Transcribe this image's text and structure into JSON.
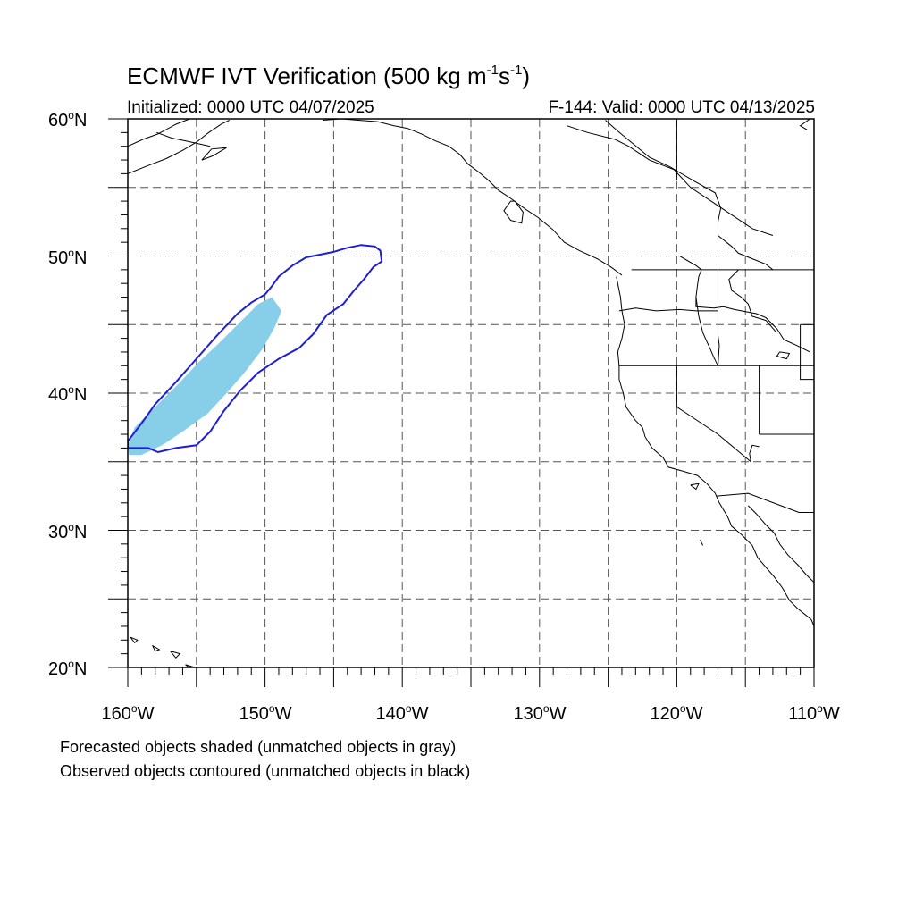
{
  "title": {
    "main": "ECMWF IVT Verification (500 kg m",
    "sup1": "-1",
    "mid": "s",
    "sup2": "-1",
    "end": ")"
  },
  "subtitle_left": "Initialized: 0000 UTC 04/07/2025",
  "subtitle_right": "F-144: Valid: 0000 UTC 04/13/2025",
  "map": {
    "lon_range": [
      -160,
      -110
    ],
    "lat_range": [
      20,
      60
    ],
    "grid": true,
    "grid_lon_step": 5,
    "grid_lat_step": 5,
    "lat_ticks": [
      {
        "deg": "60",
        "suffix": "N"
      },
      {
        "deg": "50",
        "suffix": "N"
      },
      {
        "deg": "40",
        "suffix": "N"
      },
      {
        "deg": "30",
        "suffix": "N"
      },
      {
        "deg": "20",
        "suffix": "N"
      }
    ],
    "lon_ticks": [
      {
        "deg": "160",
        "suffix": "W"
      },
      {
        "deg": "150",
        "suffix": "W"
      },
      {
        "deg": "140",
        "suffix": "W"
      },
      {
        "deg": "130",
        "suffix": "W"
      },
      {
        "deg": "120",
        "suffix": "W"
      },
      {
        "deg": "110",
        "suffix": "W"
      }
    ],
    "forecast_object": {
      "color": "#87CEE8",
      "outline": [
        [
          -159.9,
          35.5
        ],
        [
          -159.0,
          35.5
        ],
        [
          -157.5,
          36.2
        ],
        [
          -156.0,
          37.2
        ],
        [
          -154.2,
          38.5
        ],
        [
          -152.8,
          40.0
        ],
        [
          -151.5,
          41.5
        ],
        [
          -150.2,
          43.2
        ],
        [
          -149.3,
          44.8
        ],
        [
          -148.8,
          46.0
        ],
        [
          -149.5,
          47.0
        ],
        [
          -150.5,
          46.5
        ],
        [
          -152.0,
          45.0
        ],
        [
          -153.5,
          43.5
        ],
        [
          -154.8,
          42.3
        ],
        [
          -156.2,
          40.8
        ],
        [
          -157.8,
          39.2
        ],
        [
          -159.5,
          37.5
        ],
        [
          -160.0,
          36.2
        ]
      ]
    },
    "observed_object": {
      "color": "#1E1ED2",
      "outline": [
        [
          -160.0,
          36.0
        ],
        [
          -158.5,
          36.0
        ],
        [
          -157.8,
          35.7
        ],
        [
          -156.5,
          36.0
        ],
        [
          -155.0,
          36.2
        ],
        [
          -154.0,
          37.2
        ],
        [
          -153.0,
          38.7
        ],
        [
          -151.8,
          40.2
        ],
        [
          -150.5,
          41.5
        ],
        [
          -149.0,
          42.5
        ],
        [
          -147.5,
          43.3
        ],
        [
          -146.5,
          44.3
        ],
        [
          -145.5,
          45.7
        ],
        [
          -144.3,
          46.5
        ],
        [
          -143.5,
          47.5
        ],
        [
          -142.8,
          48.3
        ],
        [
          -142.1,
          49.2
        ],
        [
          -141.5,
          49.6
        ],
        [
          -141.6,
          50.4
        ],
        [
          -142.0,
          50.7
        ],
        [
          -143.0,
          50.8
        ],
        [
          -144.0,
          50.6
        ],
        [
          -145.0,
          50.3
        ],
        [
          -146.0,
          50.1
        ],
        [
          -147.0,
          49.9
        ],
        [
          -148.0,
          49.3
        ],
        [
          -149.0,
          48.5
        ],
        [
          -149.5,
          47.8
        ],
        [
          -150.0,
          47.2
        ],
        [
          -151.0,
          46.6
        ],
        [
          -152.0,
          45.8
        ],
        [
          -153.5,
          44.2
        ],
        [
          -155.0,
          42.5
        ],
        [
          -156.5,
          40.8
        ],
        [
          -158.0,
          39.2
        ],
        [
          -159.0,
          37.8
        ],
        [
          -160.0,
          36.5
        ]
      ]
    },
    "coastlines": [
      [
        [
          -128.0,
          59.5
        ],
        [
          -126.5,
          59.0
        ],
        [
          -124.5,
          58.5
        ],
        [
          -123.5,
          58.0
        ],
        [
          -122.0,
          57.0
        ],
        [
          -120.2,
          56.3
        ],
        [
          -119.0,
          55.0
        ],
        [
          -117.5,
          54.0
        ],
        [
          -116.0,
          53.0
        ],
        [
          -114.5,
          52.0
        ],
        [
          -113.0,
          51.5
        ]
      ],
      [
        [
          -125.2,
          59.9
        ],
        [
          -124.3,
          59.1
        ],
        [
          -123.2,
          58.2
        ],
        [
          -122.0,
          57.2
        ],
        [
          -120.5,
          56.5
        ],
        [
          -118.8,
          55.5
        ],
        [
          -117.2,
          54.6
        ],
        [
          -116.8,
          53.5
        ],
        [
          -117.0,
          52.5
        ],
        [
          -117.0,
          51.5
        ],
        [
          -116.0,
          50.7
        ],
        [
          -115.5,
          50.2
        ],
        [
          -114.5,
          49.8
        ],
        [
          -113.5,
          49.4
        ],
        [
          -113.0,
          49.0
        ]
      ],
      [
        [
          -119.8,
          50.0
        ],
        [
          -118.6,
          49.3
        ],
        [
          -118.2,
          49.0
        ],
        [
          -118.4,
          48.5
        ],
        [
          -118.5,
          47.8
        ],
        [
          -118.6,
          47.0
        ],
        [
          -118.6,
          46.3
        ],
        [
          -117.3,
          46.2
        ],
        [
          -116.6,
          46.3
        ],
        [
          -115.8,
          46.1
        ],
        [
          -114.2,
          45.8
        ],
        [
          -113.5,
          45.5
        ],
        [
          -112.7,
          44.7
        ],
        [
          -112.2,
          43.9
        ],
        [
          -111.3,
          43.5
        ],
        [
          -110.3,
          43.0
        ]
      ],
      [
        [
          -118.6,
          47.0
        ],
        [
          -118.4,
          45.6
        ],
        [
          -118.1,
          44.4
        ],
        [
          -117.6,
          43.3
        ],
        [
          -117.3,
          42.6
        ],
        [
          -117.0,
          42.0
        ]
      ],
      [
        [
          -124.4,
          48.5
        ],
        [
          -124.1,
          47.0
        ],
        [
          -124.0,
          46.0
        ],
        [
          -123.8,
          45.0
        ],
        [
          -124.0,
          44.0
        ],
        [
          -124.3,
          43.0
        ],
        [
          -124.2,
          42.0
        ],
        [
          -124.2,
          41.0
        ],
        [
          -123.9,
          40.0
        ],
        [
          -123.7,
          39.0
        ],
        [
          -123.0,
          38.0
        ],
        [
          -122.5,
          37.5
        ],
        [
          -122.3,
          36.8
        ],
        [
          -121.8,
          36.0
        ],
        [
          -121.0,
          35.3
        ],
        [
          -120.6,
          34.6
        ],
        [
          -119.5,
          34.3
        ],
        [
          -118.5,
          34.0
        ],
        [
          -117.8,
          33.4
        ],
        [
          -117.2,
          32.7
        ],
        [
          -116.9,
          32.0
        ],
        [
          -116.3,
          31.0
        ],
        [
          -116.0,
          30.3
        ],
        [
          -115.3,
          29.7
        ],
        [
          -114.5,
          28.9
        ],
        [
          -114.1,
          28.0
        ],
        [
          -113.5,
          27.3
        ],
        [
          -112.9,
          26.6
        ],
        [
          -112.3,
          25.8
        ],
        [
          -111.8,
          24.9
        ],
        [
          -111.2,
          24.3
        ],
        [
          -110.2,
          23.5
        ],
        [
          -110.0,
          23.0
        ]
      ],
      [
        [
          -114.8,
          31.8
        ],
        [
          -114.2,
          31.2
        ],
        [
          -113.5,
          30.4
        ],
        [
          -112.9,
          29.8
        ],
        [
          -112.5,
          29.0
        ],
        [
          -111.9,
          28.2
        ],
        [
          -111.2,
          27.5
        ],
        [
          -110.6,
          26.8
        ],
        [
          -110.0,
          26.2
        ]
      ],
      [
        [
          -145.8,
          59.9
        ],
        [
          -144.4,
          60.0
        ],
        [
          -143.2,
          59.9
        ],
        [
          -141.8,
          59.8
        ],
        [
          -140.6,
          59.5
        ],
        [
          -139.6,
          59.3
        ],
        [
          -138.6,
          58.9
        ],
        [
          -137.6,
          58.4
        ],
        [
          -136.6,
          58.0
        ],
        [
          -135.8,
          57.4
        ],
        [
          -135.2,
          56.7
        ],
        [
          -134.4,
          56.1
        ],
        [
          -133.7,
          55.5
        ],
        [
          -133.0,
          54.8
        ],
        [
          -132.1,
          54.2
        ],
        [
          -131.0,
          53.4
        ],
        [
          -130.1,
          52.8
        ],
        [
          -129.0,
          51.9
        ],
        [
          -128.2,
          51.0
        ],
        [
          -127.1,
          50.4
        ],
        [
          -125.8,
          49.8
        ],
        [
          -124.8,
          49.2
        ],
        [
          -124.0,
          48.6
        ]
      ],
      [
        [
          -131.8,
          54.0
        ],
        [
          -131.2,
          53.2
        ],
        [
          -131.3,
          52.4
        ],
        [
          -132.1,
          52.6
        ],
        [
          -132.6,
          53.3
        ],
        [
          -132.1,
          54.0
        ],
        [
          -131.8,
          54.0
        ]
      ],
      [
        [
          -155.5,
          60.0
        ],
        [
          -156.5,
          59.6
        ],
        [
          -157.8,
          58.9
        ],
        [
          -158.9,
          58.5
        ],
        [
          -160.0,
          58.0
        ]
      ],
      [
        [
          -152.8,
          57.9
        ],
        [
          -153.8,
          57.3
        ],
        [
          -154.6,
          57.0
        ],
        [
          -153.9,
          57.8
        ],
        [
          -152.8,
          57.9
        ]
      ],
      [
        [
          -157.9,
          59.0
        ],
        [
          -156.8,
          58.6
        ],
        [
          -155.8,
          58.4
        ],
        [
          -154.9,
          58.2
        ],
        [
          -154.0,
          58.0
        ]
      ],
      [
        [
          -160.0,
          56.0
        ],
        [
          -158.5,
          56.6
        ],
        [
          -157.2,
          57.1
        ],
        [
          -156.0,
          57.7
        ],
        [
          -155.0,
          58.3
        ],
        [
          -154.1,
          59.0
        ],
        [
          -153.2,
          59.6
        ],
        [
          -152.6,
          59.9
        ]
      ],
      [
        [
          -110.3,
          60.0
        ],
        [
          -111.0,
          59.5
        ],
        [
          -110.5,
          59.2
        ]
      ],
      [
        [
          -159.8,
          22.2
        ],
        [
          -159.3,
          22.0
        ],
        [
          -159.5,
          21.8
        ],
        [
          -159.8,
          22.2
        ]
      ],
      [
        [
          -158.2,
          21.6
        ],
        [
          -157.7,
          21.3
        ],
        [
          -158.0,
          21.2
        ],
        [
          -158.2,
          21.6
        ]
      ],
      [
        [
          -156.9,
          21.2
        ],
        [
          -156.2,
          21.0
        ],
        [
          -156.5,
          20.7
        ],
        [
          -156.9,
          21.2
        ]
      ],
      [
        [
          -155.8,
          20.2
        ],
        [
          -155.1,
          20.0
        ],
        [
          -154.9,
          19.5
        ],
        [
          -155.8,
          20.2
        ]
      ],
      [
        [
          -119.0,
          33.3
        ],
        [
          -118.4,
          33.4
        ],
        [
          -118.6,
          33.0
        ],
        [
          -119.0,
          33.3
        ]
      ],
      [
        [
          -118.3,
          29.3
        ],
        [
          -118.1,
          28.9
        ],
        [
          -118.3,
          29.3
        ]
      ],
      [
        [
          -112.5,
          43.0
        ],
        [
          -111.8,
          42.9
        ],
        [
          -112.0,
          42.5
        ],
        [
          -112.7,
          42.7
        ],
        [
          -112.5,
          43.0
        ]
      ]
    ],
    "borders": [
      [
        [
          -123.3,
          49.0
        ],
        [
          -110.0,
          49.0
        ]
      ],
      [
        [
          -124.2,
          46.0
        ],
        [
          -123.0,
          46.2
        ],
        [
          -121.5,
          46.0
        ],
        [
          -119.8,
          46.1
        ],
        [
          -118.6,
          46.0
        ],
        [
          -117.0,
          46.0
        ]
      ],
      [
        [
          -124.2,
          42.0
        ],
        [
          -110.0,
          42.0
        ]
      ],
      [
        [
          -117.0,
          49.0
        ],
        [
          -117.0,
          44.2
        ],
        [
          -116.9,
          43.5
        ],
        [
          -117.0,
          42.0
        ]
      ],
      [
        [
          -111.0,
          45.0
        ],
        [
          -110.0,
          45.0
        ]
      ],
      [
        [
          -111.0,
          45.0
        ],
        [
          -111.0,
          41.0
        ],
        [
          -110.0,
          41.0
        ]
      ],
      [
        [
          -120.0,
          42.0
        ],
        [
          -120.0,
          39.0
        ],
        [
          -117.0,
          37.0
        ],
        [
          -114.6,
          35.0
        ]
      ],
      [
        [
          -114.0,
          42.0
        ],
        [
          -114.0,
          37.0
        ]
      ],
      [
        [
          -114.0,
          37.0
        ],
        [
          -110.0,
          37.0
        ]
      ],
      [
        [
          -114.0,
          36.1
        ],
        [
          -114.5,
          36.2
        ],
        [
          -114.7,
          35.6
        ],
        [
          -114.6,
          35.0
        ]
      ],
      [
        [
          -117.1,
          32.5
        ],
        [
          -114.8,
          32.7
        ],
        [
          -111.1,
          31.3
        ],
        [
          -110.0,
          31.3
        ]
      ],
      [
        [
          -115.5,
          49.0
        ],
        [
          -116.2,
          48.3
        ],
        [
          -116.0,
          47.5
        ],
        [
          -115.3,
          47.0
        ],
        [
          -114.8,
          46.5
        ],
        [
          -114.5,
          45.6
        ],
        [
          -113.5,
          45.3
        ],
        [
          -112.8,
          44.5
        ]
      ],
      [
        [
          -120.0,
          60.0
        ],
        [
          -120.0,
          55.5
        ]
      ]
    ]
  },
  "footnotes": [
    "Forecasted objects shaded (unmatched objects in gray)",
    "Observed objects contoured (unmatched objects in black)"
  ]
}
